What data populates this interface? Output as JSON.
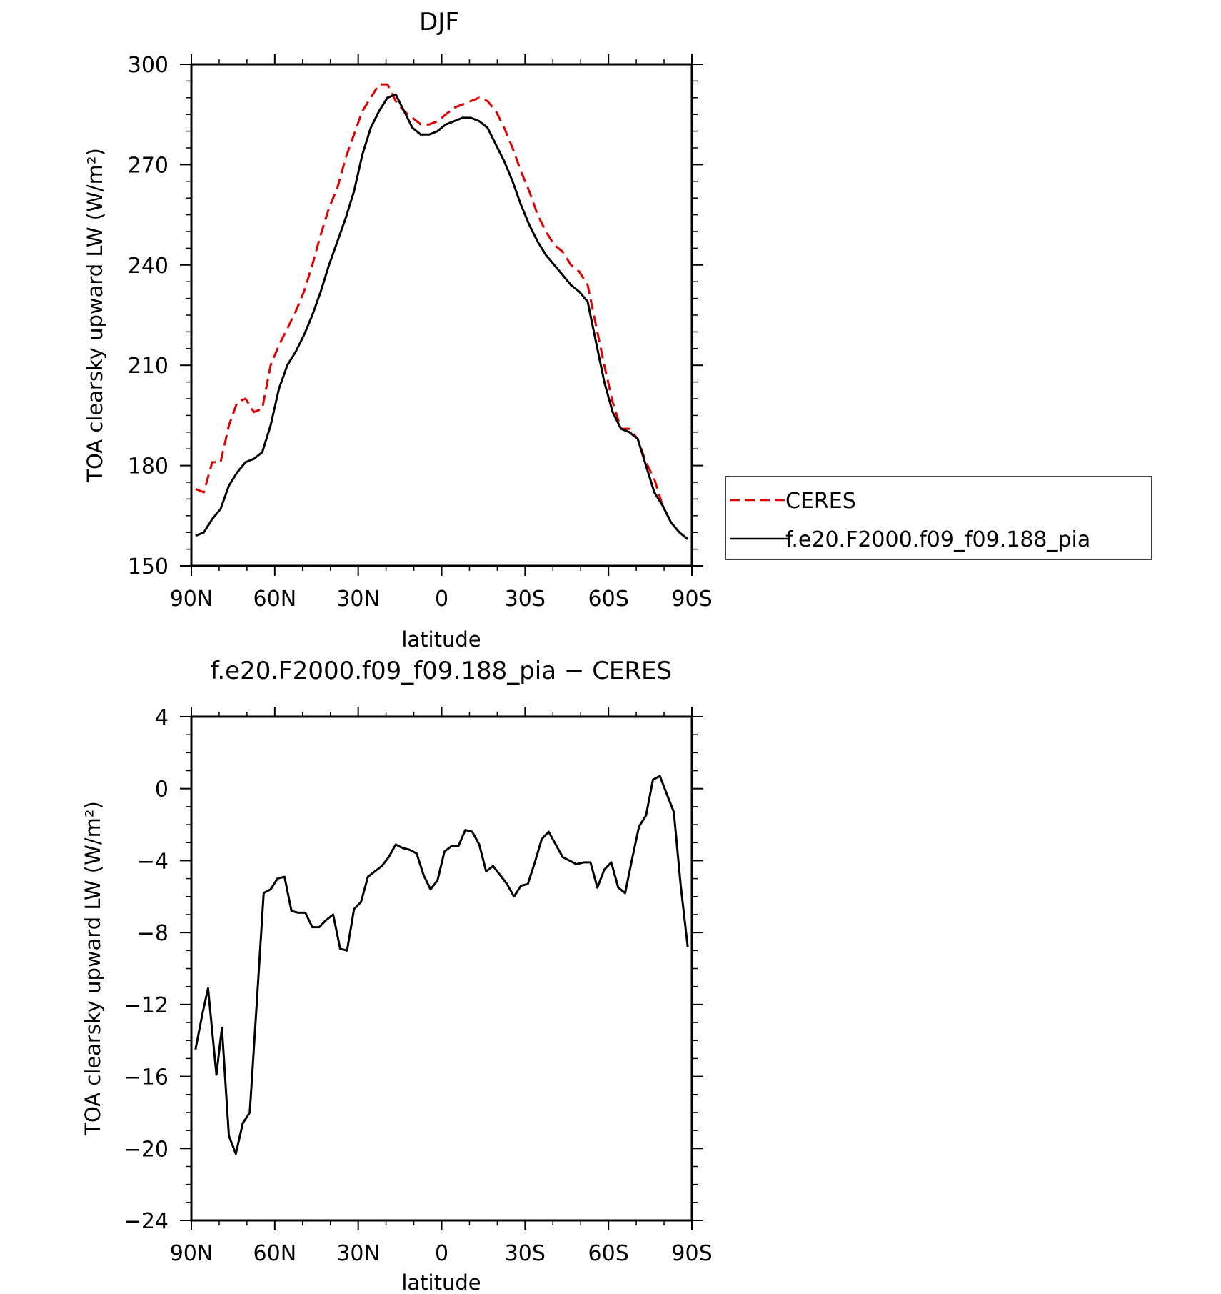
{
  "chart_data": [
    {
      "type": "line",
      "title": "DJF",
      "xlabel": "latitude",
      "ylabel": "TOA clearsky upward LW (W/m²)",
      "xlim": [
        90,
        -90
      ],
      "ylim": [
        150,
        300
      ],
      "x_ticks": [
        90,
        60,
        30,
        0,
        -30,
        -60,
        -90
      ],
      "x_tick_labels": [
        "90N",
        "60N",
        "30N",
        "0",
        "30S",
        "60S",
        "90S"
      ],
      "y_ticks": [
        150,
        180,
        210,
        240,
        270,
        300
      ],
      "y_tick_labels": [
        "150",
        "180",
        "210",
        "240",
        "270",
        "300"
      ],
      "grid": false,
      "legend_position": "right",
      "x": [
        88.5,
        85.5,
        82.5,
        79.5,
        76.5,
        73.5,
        70.5,
        67.5,
        64.5,
        61.5,
        58.5,
        55.5,
        52.5,
        49.5,
        46.5,
        43.5,
        40.5,
        37.5,
        34.5,
        31.5,
        28.5,
        25.5,
        22.5,
        19.5,
        16.5,
        13.5,
        10.5,
        7.5,
        4.5,
        1.5,
        -1.5,
        -4.5,
        -7.5,
        -10.5,
        -13.5,
        -16.5,
        -19.5,
        -22.5,
        -25.5,
        -28.5,
        -31.5,
        -34.5,
        -37.5,
        -40.5,
        -43.5,
        -46.5,
        -49.5,
        -52.5,
        -55.5,
        -58.5,
        -61.5,
        -64.5,
        -67.5,
        -70.5,
        -73.5,
        -76.5,
        -79.5,
        -82.5,
        -85.5,
        -88.5
      ],
      "series": [
        {
          "name": "CERES",
          "color": "#e00000",
          "style": "dashed",
          "values": [
            173,
            172,
            181,
            181,
            192,
            199,
            200,
            196,
            197,
            210,
            216,
            221,
            226,
            232,
            240,
            249,
            257,
            263,
            272,
            279,
            286,
            290,
            294,
            294,
            289,
            286,
            284,
            282,
            282,
            283,
            285,
            287,
            288,
            289,
            290,
            289,
            286,
            281,
            275,
            268,
            262,
            255,
            250,
            246,
            244,
            240,
            238,
            234,
            222,
            210,
            199,
            191,
            191,
            188,
            181,
            176,
            168,
            163,
            160,
            158
          ]
        },
        {
          "name": "f.e20.F2000.f09_f09.188_pia",
          "color": "#000000",
          "style": "solid",
          "values": [
            159,
            160,
            164,
            167,
            174,
            178,
            181,
            182,
            184,
            192,
            203,
            210,
            214,
            219,
            225,
            232,
            240,
            247,
            254,
            262,
            273,
            281,
            286,
            290,
            291,
            286,
            281,
            279,
            279,
            280,
            282,
            283,
            284,
            284,
            283,
            281,
            276,
            271,
            265,
            258,
            252,
            247,
            243,
            240,
            237,
            234,
            232,
            229,
            217,
            205,
            196,
            191,
            190,
            188,
            180,
            172,
            168,
            163,
            160,
            158
          ]
        }
      ]
    },
    {
      "type": "line",
      "title": "f.e20.F2000.f09_f09.188_pia − CERES",
      "xlabel": "latitude",
      "ylabel": "TOA clearsky upward LW (W/m²)",
      "xlim": [
        90,
        -90
      ],
      "ylim": [
        -24,
        4
      ],
      "x_ticks": [
        90,
        60,
        30,
        0,
        -30,
        -60,
        -90
      ],
      "x_tick_labels": [
        "90N",
        "60N",
        "30N",
        "0",
        "30S",
        "60S",
        "90S"
      ],
      "y_ticks": [
        4,
        0,
        -4,
        -8,
        -12,
        -16,
        -20,
        -24
      ],
      "y_tick_labels": [
        "4",
        "0",
        "−4",
        "−8",
        "−12",
        "−16",
        "−20",
        "−24"
      ],
      "grid": false,
      "x": [
        88.5,
        86,
        84,
        81,
        79,
        76.5,
        74,
        71.5,
        69,
        66.5,
        64,
        61.5,
        59,
        56.5,
        54,
        51.5,
        49,
        46.5,
        44,
        41.5,
        39,
        36.5,
        34,
        31.5,
        29,
        26.5,
        24,
        21.5,
        19,
        16.5,
        14,
        11.5,
        9,
        6.5,
        4,
        1.5,
        -1,
        -3.5,
        -6,
        -8.5,
        -11,
        -13.5,
        -16,
        -18.5,
        -21,
        -23.5,
        -26,
        -28.5,
        -31,
        -33.5,
        -36,
        -38.5,
        -41,
        -43.5,
        -46,
        -48.5,
        -51,
        -53.5,
        -56,
        -58.5,
        -61,
        -63.5,
        -66,
        -68.5,
        -71,
        -73.5,
        -76,
        -78.5,
        -81,
        -83.5,
        -86,
        -88.5
      ],
      "series": [
        {
          "name": "",
          "color": "#000000",
          "style": "solid",
          "values": [
            -14.5,
            -12.5,
            -11.1,
            -15.9,
            -13.3,
            -19.3,
            -20.3,
            -18.6,
            -18.0,
            -12.0,
            -5.8,
            -5.6,
            -5.0,
            -4.9,
            -6.8,
            -6.9,
            -6.9,
            -7.7,
            -7.7,
            -7.3,
            -7.0,
            -8.9,
            -9.0,
            -6.7,
            -6.3,
            -4.9,
            -4.6,
            -4.3,
            -3.8,
            -3.1,
            -3.3,
            -3.4,
            -3.6,
            -4.8,
            -5.6,
            -5.1,
            -3.5,
            -3.2,
            -3.2,
            -2.3,
            -2.4,
            -3.1,
            -4.6,
            -4.3,
            -4.8,
            -5.3,
            -6.0,
            -5.4,
            -5.3,
            -4.1,
            -2.8,
            -2.4,
            -3.1,
            -3.8,
            -4.0,
            -4.2,
            -4.1,
            -4.1,
            -5.5,
            -4.5,
            -4.1,
            -5.5,
            -5.8,
            -3.9,
            -2.1,
            -1.5,
            0.5,
            0.7,
            -0.3,
            -1.3,
            -5.4,
            -8.8
          ]
        }
      ]
    }
  ]
}
